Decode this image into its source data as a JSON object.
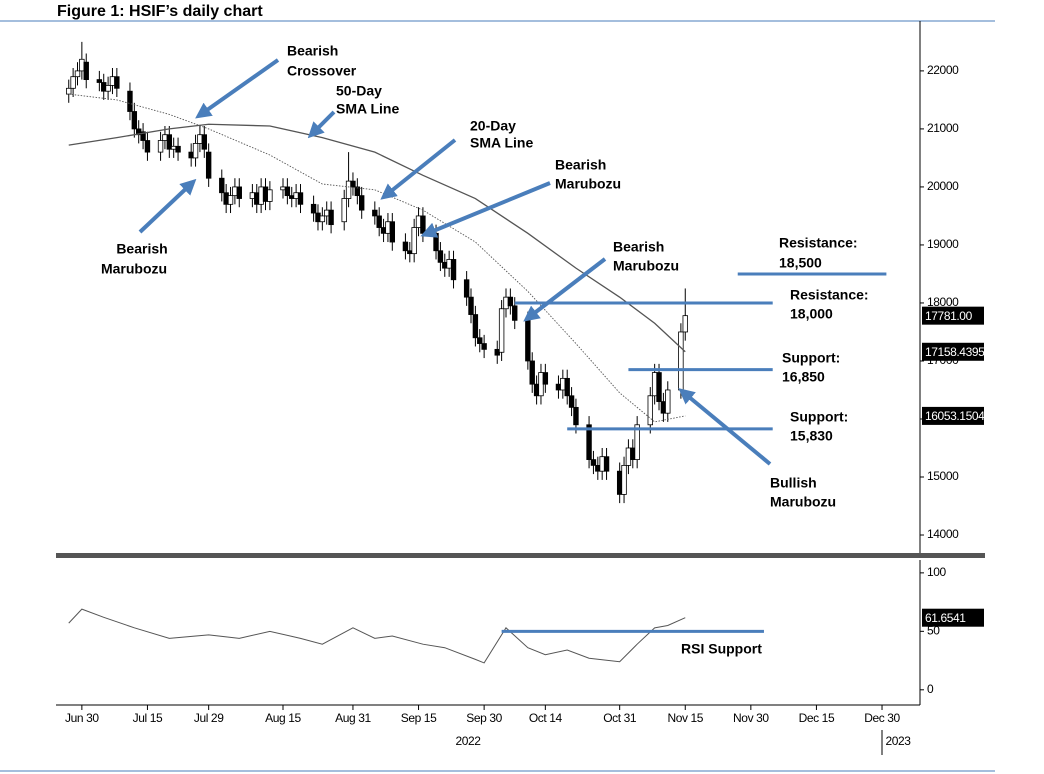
{
  "chart_data": [
    {
      "type": "candlestick",
      "title": "Figure 1: HSIF’s daily chart",
      "x": [
        "2022-06-27",
        "2022-06-28",
        "2022-06-29",
        "2022-06-30",
        "2022-07-01",
        "2022-07-04",
        "2022-07-05",
        "2022-07-06",
        "2022-07-07",
        "2022-07-08",
        "2022-07-11",
        "2022-07-12",
        "2022-07-13",
        "2022-07-14",
        "2022-07-15",
        "2022-07-18",
        "2022-07-19",
        "2022-07-20",
        "2022-07-21",
        "2022-07-22",
        "2022-07-25",
        "2022-07-26",
        "2022-07-27",
        "2022-07-28",
        "2022-07-29",
        "2022-08-01",
        "2022-08-02",
        "2022-08-03",
        "2022-08-04",
        "2022-08-05",
        "2022-08-08",
        "2022-08-09",
        "2022-08-10",
        "2022-08-11",
        "2022-08-12",
        "2022-08-15",
        "2022-08-16",
        "2022-08-17",
        "2022-08-18",
        "2022-08-19",
        "2022-08-22",
        "2022-08-23",
        "2022-08-24",
        "2022-08-25",
        "2022-08-26",
        "2022-08-29",
        "2022-08-30",
        "2022-08-31",
        "2022-09-01",
        "2022-09-02",
        "2022-09-05",
        "2022-09-06",
        "2022-09-07",
        "2022-09-08",
        "2022-09-09",
        "2022-09-12",
        "2022-09-13",
        "2022-09-14",
        "2022-09-15",
        "2022-09-16",
        "2022-09-19",
        "2022-09-20",
        "2022-09-21",
        "2022-09-22",
        "2022-09-23",
        "2022-09-26",
        "2022-09-27",
        "2022-09-28",
        "2022-09-29",
        "2022-09-30",
        "2022-10-03",
        "2022-10-04",
        "2022-10-05",
        "2022-10-06",
        "2022-10-07",
        "2022-10-10",
        "2022-10-11",
        "2022-10-12",
        "2022-10-13",
        "2022-10-14",
        "2022-10-17",
        "2022-10-18",
        "2022-10-19",
        "2022-10-20",
        "2022-10-21",
        "2022-10-24",
        "2022-10-25",
        "2022-10-26",
        "2022-10-27",
        "2022-10-28",
        "2022-10-31",
        "2022-11-01",
        "2022-11-02",
        "2022-11-03",
        "2022-11-04",
        "2022-11-07",
        "2022-11-08",
        "2022-11-09",
        "2022-11-10",
        "2022-11-11",
        "2022-11-14",
        "2022-11-15"
      ],
      "open": [
        21600,
        21700,
        21900,
        22000,
        22150,
        21850,
        21800,
        21650,
        21750,
        21900,
        21650,
        21300,
        21000,
        20950,
        20800,
        20600,
        20800,
        20900,
        20650,
        20700,
        20600,
        20500,
        20750,
        20900,
        20600,
        20150,
        19900,
        19700,
        19850,
        20000,
        19800,
        19900,
        19700,
        20000,
        19750,
        19950,
        20000,
        19850,
        19800,
        19900,
        19700,
        19550,
        19400,
        19500,
        19600,
        19400,
        19800,
        20100,
        20000,
        19850,
        19600,
        19500,
        19300,
        19200,
        19400,
        19050,
        18900,
        18850,
        19300,
        19500,
        19200,
        18900,
        18700,
        18600,
        18750,
        18400,
        18100,
        17800,
        17400,
        17300,
        17200,
        17150,
        17900,
        18100,
        17950,
        17700,
        17000,
        16600,
        16400,
        16800,
        16600,
        16500,
        16700,
        16400,
        16200,
        15900,
        15300,
        15200,
        15100,
        15350,
        15100,
        14700,
        15200,
        15500,
        15300,
        15900,
        16400,
        16800,
        16300,
        16100,
        16500,
        17500
      ],
      "high": [
        21850,
        22050,
        22150,
        22500,
        22300,
        22000,
        21950,
        21900,
        22050,
        22050,
        21800,
        21450,
        21150,
        21100,
        20950,
        20950,
        21050,
        21050,
        20850,
        20850,
        20750,
        20900,
        21050,
        21050,
        20750,
        20300,
        20050,
        20000,
        20150,
        20150,
        20050,
        20050,
        20150,
        20150,
        20100,
        20150,
        20150,
        20000,
        20050,
        20050,
        19850,
        19700,
        19650,
        19750,
        19750,
        19950,
        20600,
        20250,
        20150,
        20000,
        19750,
        19650,
        19450,
        19550,
        19550,
        19200,
        19050,
        19450,
        19650,
        19650,
        19350,
        19050,
        18850,
        18900,
        18900,
        18550,
        18250,
        17950,
        17550,
        17450,
        17350,
        18050,
        18250,
        18250,
        18100,
        17850,
        17150,
        16750,
        16950,
        16950,
        16750,
        16850,
        16850,
        16550,
        16350,
        16050,
        15450,
        15350,
        15500,
        15500,
        15250,
        15350,
        15650,
        15650,
        16050,
        16550,
        16950,
        16950,
        16450,
        16650,
        17650,
        18250
      ],
      "low": [
        21450,
        21550,
        21750,
        21850,
        21700,
        21650,
        21500,
        21500,
        21600,
        21550,
        21150,
        20850,
        20750,
        20650,
        20450,
        20450,
        20650,
        20500,
        20500,
        20450,
        20350,
        20350,
        20600,
        20500,
        20000,
        19750,
        19550,
        19550,
        19700,
        19650,
        19650,
        19550,
        19550,
        19600,
        19600,
        19800,
        19700,
        19650,
        19650,
        19550,
        19400,
        19250,
        19250,
        19350,
        19200,
        19250,
        19650,
        19850,
        19700,
        19450,
        19350,
        19150,
        19050,
        19050,
        18900,
        18750,
        18700,
        18700,
        19150,
        19050,
        18750,
        18550,
        18450,
        18450,
        18250,
        17950,
        17650,
        17250,
        17150,
        17050,
        16950,
        17000,
        17750,
        17800,
        17550,
        16850,
        16450,
        16250,
        16250,
        16450,
        16350,
        16350,
        16250,
        16050,
        15750,
        15150,
        15050,
        14950,
        14950,
        14950,
        14550,
        14550,
        15050,
        15150,
        15150,
        15750,
        16250,
        16150,
        15950,
        15950,
        16350,
        17350
      ],
      "close": [
        21700,
        21900,
        22000,
        22200,
        21850,
        21800,
        21650,
        21750,
        21900,
        21700,
        21300,
        21000,
        20900,
        20800,
        20600,
        20800,
        20900,
        20650,
        20700,
        20600,
        20500,
        20750,
        20900,
        20650,
        20150,
        19900,
        19700,
        19850,
        20000,
        19800,
        19900,
        19700,
        20000,
        19750,
        19950,
        20000,
        19850,
        19800,
        19900,
        19700,
        19550,
        19400,
        19500,
        19600,
        19350,
        19800,
        20100,
        20000,
        19850,
        19600,
        19500,
        19300,
        19200,
        19400,
        19050,
        18900,
        18850,
        19300,
        19500,
        19200,
        18900,
        18700,
        18600,
        18750,
        18400,
        18100,
        17800,
        17400,
        17300,
        17200,
        17100,
        17900,
        18100,
        17950,
        17700,
        17000,
        16600,
        16400,
        16800,
        16600,
        16500,
        16700,
        16400,
        16200,
        15900,
        15300,
        15200,
        15100,
        15350,
        15100,
        14700,
        15200,
        15500,
        15300,
        15900,
        16400,
        16800,
        16300,
        16100,
        16500,
        17500,
        17781
      ],
      "last_label": "17781.00",
      "up_color": "#ffffff",
      "down_color": "#000000",
      "overlays": [
        {
          "x": [
            "2022-06-27",
            "2022-07-08",
            "2022-07-20",
            "2022-07-29",
            "2022-08-12",
            "2022-08-24",
            "2022-09-05",
            "2022-09-16",
            "2022-09-28",
            "2022-10-10",
            "2022-10-21",
            "2022-10-31",
            "2022-11-08",
            "2022-11-15"
          ],
          "values": [
            20720,
            20850,
            21000,
            21080,
            21050,
            20850,
            20600,
            20200,
            19800,
            19200,
            18600,
            18100,
            17650,
            17158.4395
          ],
          "color": "#555555",
          "style": "solid"
        },
        {
          "x": [
            "2022-06-27",
            "2022-07-08",
            "2022-07-20",
            "2022-07-29",
            "2022-08-12",
            "2022-08-24",
            "2022-09-05",
            "2022-09-16",
            "2022-09-28",
            "2022-10-10",
            "2022-10-21",
            "2022-10-31",
            "2022-11-08",
            "2022-11-15"
          ],
          "values": [
            21600,
            21500,
            21250,
            21000,
            20550,
            20050,
            19950,
            19600,
            19050,
            18200,
            17300,
            16450,
            15950,
            16053.1504
          ],
          "color": "#555555",
          "style": "dotted"
        }
      ],
      "levels": [
        {
          "label": "Resistance:",
          "value": 18500,
          "value_label": "18,500",
          "from": "2022-11-27",
          "to": "2022-12-31"
        },
        {
          "label": "Resistance:",
          "value": 18000,
          "value_label": "18,000",
          "from": "2022-10-07",
          "to": "2022-12-05"
        },
        {
          "label": "Support:",
          "value": 16850,
          "value_label": "16,850",
          "from": "2022-11-02",
          "to": "2022-12-05"
        },
        {
          "label": "Support:",
          "value": 15830,
          "value_label": "15,830",
          "from": "2022-10-19",
          "to": "2022-12-05"
        }
      ],
      "level_color": "#4a7ebb",
      "annotations": [
        {
          "lines": [
            "Bearish",
            "Crossover"
          ]
        },
        {
          "lines": [
            "50-Day",
            "SMA Line"
          ]
        },
        {
          "lines": [
            "20-Day",
            "SMA Line"
          ]
        },
        {
          "lines": [
            "Bearish",
            "Marubozu"
          ]
        },
        {
          "lines": [
            "Bearish",
            "Marubozu"
          ]
        },
        {
          "lines": [
            "Bearish",
            "Marubozu"
          ]
        },
        {
          "lines": [
            "Bullish",
            "Marubozu"
          ]
        }
      ],
      "xlim": [
        "2022-06-25",
        "2023-01-07"
      ],
      "ylim": [
        13690,
        22860
      ],
      "yticks": [
        14000,
        15000,
        16000,
        17000,
        18000,
        19000,
        20000,
        21000,
        22000
      ]
    },
    {
      "type": "line",
      "x": [
        "2022-06-27",
        "2022-06-30",
        "2022-07-05",
        "2022-07-12",
        "2022-07-20",
        "2022-07-29",
        "2022-08-05",
        "2022-08-12",
        "2022-08-19",
        "2022-08-24",
        "2022-08-31",
        "2022-09-05",
        "2022-09-09",
        "2022-09-16",
        "2022-09-21",
        "2022-09-28",
        "2022-09-30",
        "2022-10-05",
        "2022-10-10",
        "2022-10-14",
        "2022-10-19",
        "2022-10-24",
        "2022-10-31",
        "2022-11-04",
        "2022-11-08",
        "2022-11-11",
        "2022-11-15"
      ],
      "values": [
        57,
        69,
        62,
        53,
        44,
        47,
        44,
        50,
        44,
        39,
        53,
        44,
        46,
        39,
        36,
        26,
        23,
        53,
        36,
        30,
        34,
        27,
        24,
        39,
        53,
        55,
        61.6541
      ],
      "color": "#555555",
      "levels": [
        {
          "label": "RSI Support",
          "value": 50,
          "from": "2022-10-04",
          "to": "2022-12-03"
        }
      ],
      "xlim": [
        "2022-06-25",
        "2023-01-07"
      ],
      "ylim": [
        -13,
        111
      ],
      "yticks": [
        0,
        50,
        100
      ],
      "xticks": [
        {
          "value": "2022-06-30",
          "label": "Jun 30"
        },
        {
          "value": "2022-07-15",
          "label": "Jul 15"
        },
        {
          "value": "2022-07-29",
          "label": "Jul 29"
        },
        {
          "value": "2022-08-15",
          "label": "Aug 15"
        },
        {
          "value": "2022-08-31",
          "label": "Aug 31"
        },
        {
          "value": "2022-09-15",
          "label": "Sep 15"
        },
        {
          "value": "2022-09-30",
          "label": "Sep 30"
        },
        {
          "value": "2022-10-14",
          "label": "Oct 14"
        },
        {
          "value": "2022-10-31",
          "label": "Oct 31"
        },
        {
          "value": "2022-11-15",
          "label": "Nov 15"
        },
        {
          "value": "2022-11-30",
          "label": "Nov 30"
        },
        {
          "value": "2022-12-15",
          "label": "Dec 15"
        },
        {
          "value": "2022-12-30",
          "label": "Dec 30"
        }
      ],
      "year_labels": [
        "2022",
        "2023"
      ]
    }
  ]
}
